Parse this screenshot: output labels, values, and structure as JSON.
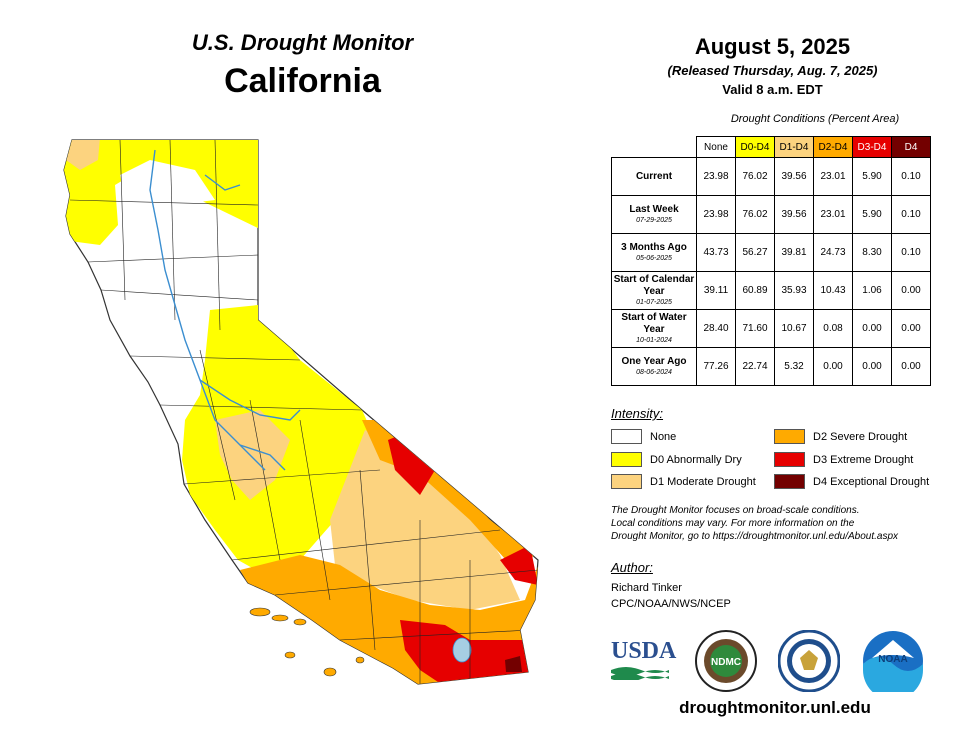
{
  "header": {
    "program": "U.S. Drought Monitor",
    "state": "California",
    "date": "August 5, 2025",
    "released": "(Released Thursday, Aug. 7, 2025)",
    "valid": "Valid 8 a.m. EDT"
  },
  "table": {
    "caption": "Drought Conditions (Percent Area)",
    "columns": [
      "None",
      "D0-D4",
      "D1-D4",
      "D2-D4",
      "D3-D4",
      "D4"
    ],
    "rows": [
      {
        "label": "Current",
        "sub": "",
        "values": [
          "23.98",
          "76.02",
          "39.56",
          "23.01",
          "5.90",
          "0.10"
        ]
      },
      {
        "label": "Last Week",
        "sub": "07-29-2025",
        "values": [
          "23.98",
          "76.02",
          "39.56",
          "23.01",
          "5.90",
          "0.10"
        ]
      },
      {
        "label": "3 Months Ago",
        "sub": "05-06-2025",
        "values": [
          "43.73",
          "56.27",
          "39.81",
          "24.73",
          "8.30",
          "0.10"
        ]
      },
      {
        "label": "Start of Calendar Year",
        "sub": "01-07-2025",
        "values": [
          "39.11",
          "60.89",
          "35.93",
          "10.43",
          "1.06",
          "0.00"
        ]
      },
      {
        "label": "Start of Water Year",
        "sub": "10-01-2024",
        "values": [
          "28.40",
          "71.60",
          "10.67",
          "0.08",
          "0.00",
          "0.00"
        ]
      },
      {
        "label": "One Year Ago",
        "sub": "08-06-2024",
        "values": [
          "77.26",
          "22.74",
          "5.32",
          "0.00",
          "0.00",
          "0.00"
        ]
      }
    ]
  },
  "legend": {
    "title": "Intensity:",
    "items": [
      {
        "label": "None",
        "color": "#ffffff"
      },
      {
        "label": "D0 Abnormally Dry",
        "color": "#ffff00"
      },
      {
        "label": "D1 Moderate Drought",
        "color": "#fcd37f"
      },
      {
        "label": "D2 Severe Drought",
        "color": "#ffaa00"
      },
      {
        "label": "D3 Extreme Drought",
        "color": "#e60000"
      },
      {
        "label": "D4 Exceptional Drought",
        "color": "#730000"
      }
    ]
  },
  "note": {
    "line1": "The Drought Monitor focuses on broad-scale conditions.",
    "line2": "Local conditions may vary. For more information on the",
    "line3": "Drought Monitor, go to https://droughtmonitor.unl.edu/About.aspx"
  },
  "author": {
    "title": "Author:",
    "name": "Richard Tinker",
    "org": "CPC/NOAA/NWS/NCEP"
  },
  "logos": {
    "usda": "USDA",
    "ndmc": "NDMC",
    "noaa": "NOAA"
  },
  "website": "droughtmonitor.unl.edu"
}
